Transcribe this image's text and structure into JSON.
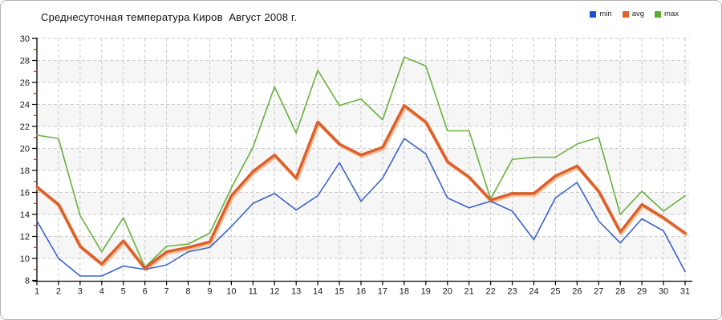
{
  "window": {
    "background": "#ffffff",
    "border_color": "#b3b3b3"
  },
  "header": {
    "title": "Среднесуточная температура Киров  Август 2008 г."
  },
  "legend": {
    "items": [
      {
        "label": "min",
        "color": "#1f4fd8"
      },
      {
        "label": "avg",
        "color": "#e0622a"
      },
      {
        "label": "max",
        "color": "#56b02e"
      }
    ]
  },
  "chart_data": {
    "type": "line",
    "title": "Среднесуточная температура Киров  Август 2008 г.",
    "xlabel": "",
    "ylabel": "",
    "x": [
      1,
      2,
      3,
      4,
      5,
      6,
      7,
      8,
      9,
      10,
      11,
      12,
      13,
      14,
      15,
      16,
      17,
      18,
      19,
      20,
      21,
      22,
      23,
      24,
      25,
      26,
      27,
      28,
      29,
      30,
      31
    ],
    "ylim": [
      8,
      30
    ],
    "ytick_step": 2,
    "grid": "dashed",
    "gridline_color": "#c9c9c9",
    "band_color": "#f6f6f6",
    "axis_color": "#000000",
    "minor_tick_color": "#cc2222",
    "legend_position": "top-right",
    "series": [
      {
        "name": "min",
        "color": "#3a62cf",
        "width": 1.6,
        "values": [
          13.4,
          10.0,
          8.4,
          8.4,
          9.3,
          9.0,
          9.4,
          10.6,
          11.0,
          12.9,
          15.0,
          15.9,
          14.4,
          15.7,
          18.7,
          15.2,
          17.3,
          20.9,
          19.5,
          15.5,
          14.6,
          15.2,
          14.3,
          11.7,
          15.5,
          16.9,
          13.4,
          11.4,
          13.6,
          12.5,
          8.8
        ]
      },
      {
        "name": "avg",
        "color": "#dc5f2b",
        "width": 3.4,
        "halo_color": "#f3bd95",
        "values": [
          16.5,
          14.9,
          11.1,
          9.5,
          11.6,
          9.1,
          10.6,
          11.0,
          11.5,
          15.7,
          17.9,
          19.4,
          17.3,
          22.4,
          20.4,
          19.4,
          20.1,
          23.9,
          22.4,
          18.8,
          17.4,
          15.3,
          15.9,
          15.9,
          17.5,
          18.4,
          16.1,
          12.4,
          14.9,
          13.7,
          12.3
        ]
      },
      {
        "name": "max",
        "color": "#68b13c",
        "width": 1.6,
        "values": [
          21.2,
          20.9,
          13.9,
          10.6,
          13.7,
          9.2,
          11.1,
          11.3,
          12.3,
          16.4,
          20.1,
          25.6,
          21.4,
          27.1,
          23.9,
          24.5,
          22.6,
          28.3,
          27.5,
          21.6,
          21.6,
          15.4,
          19.0,
          19.2,
          19.2,
          20.4,
          21.0,
          14.0,
          16.1,
          14.3,
          15.7
        ]
      }
    ]
  }
}
